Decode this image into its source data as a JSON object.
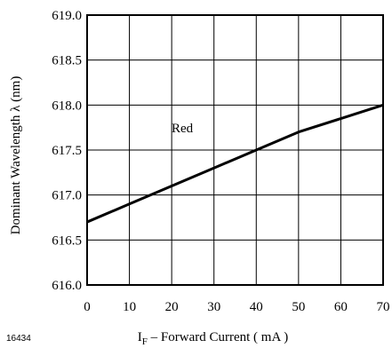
{
  "figure_id": "16434",
  "chart_data": {
    "type": "line",
    "xlabel": {
      "prefix": "I",
      "subscript": "F",
      "rest": " – Forward Current ( mA )"
    },
    "ylabel": "Dominant Wavelength λ  (nm)",
    "xlim": [
      0,
      70
    ],
    "ylim": [
      616.0,
      619.0
    ],
    "x_ticks": [
      "0",
      "10",
      "20",
      "30",
      "40",
      "50",
      "60",
      "70"
    ],
    "y_ticks": [
      "616.0",
      "616.5",
      "617.0",
      "617.5",
      "618.0",
      "618.5",
      "619.0"
    ],
    "x_tick_values": [
      0,
      10,
      20,
      30,
      40,
      50,
      60,
      70
    ],
    "y_tick_values": [
      616.0,
      616.5,
      617.0,
      617.5,
      618.0,
      618.5,
      619.0
    ],
    "grid": true,
    "series": [
      {
        "name": "Red",
        "color": "#000000",
        "x": [
          0,
          10,
          20,
          30,
          40,
          50,
          60,
          70
        ],
        "y": [
          616.7,
          616.9,
          617.1,
          617.3,
          617.5,
          617.7,
          617.85,
          618.0
        ]
      }
    ]
  }
}
